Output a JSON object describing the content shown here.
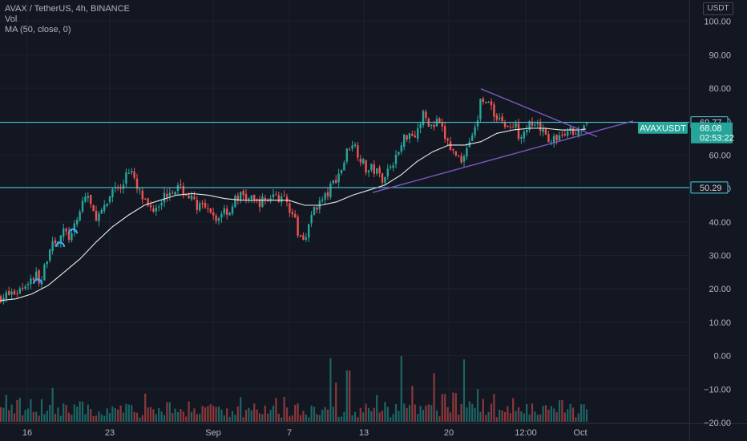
{
  "legend": {
    "title": "AVAX / TetherUS, 4h, BINANCE",
    "vol": "Vol",
    "ma": "MA (50, close, 0)"
  },
  "currency": "USDT",
  "colors": {
    "background": "#131722",
    "up": "#26a69a",
    "down": "#ef5350",
    "ma": "#e8e8e8",
    "trendline": "#7e57c2",
    "level": "#4dd0e1"
  },
  "chart_data": {
    "type": "candlestick",
    "symbol": "AVAXUSDT",
    "timeframe": "4h",
    "exchange": "BINANCE",
    "price_axis": {
      "ticks": [
        100,
        90,
        80,
        70,
        60,
        50,
        40,
        30,
        20,
        10,
        0,
        -10,
        -20
      ],
      "tick_labels": [
        "100.00",
        "90.00",
        "80.00",
        "70.00",
        "60.00",
        "50.00",
        "40.00",
        "30.00",
        "20.00",
        "10.00",
        "0.00",
        "−10.00",
        "−20.00"
      ]
    },
    "time_axis": {
      "labels": [
        "16",
        "23",
        "Sep",
        "7",
        "13",
        "20",
        "12:00",
        "Oct"
      ]
    },
    "price_anchors": [
      [
        0,
        17.5
      ],
      [
        8,
        18
      ],
      [
        20,
        19
      ],
      [
        30,
        21
      ],
      [
        38,
        23
      ],
      [
        45,
        24
      ],
      [
        52,
        22
      ],
      [
        58,
        29
      ],
      [
        64,
        34
      ],
      [
        72,
        35
      ],
      [
        80,
        37
      ],
      [
        88,
        35
      ],
      [
        96,
        40
      ],
      [
        104,
        47
      ],
      [
        110,
        48
      ],
      [
        116,
        42
      ],
      [
        124,
        42
      ],
      [
        132,
        44
      ],
      [
        140,
        50
      ],
      [
        146,
        51
      ],
      [
        152,
        49
      ],
      [
        158,
        56
      ],
      [
        164,
        55
      ],
      [
        170,
        50
      ],
      [
        176,
        48
      ],
      [
        182,
        45
      ],
      [
        190,
        44
      ],
      [
        198,
        46
      ],
      [
        206,
        48
      ],
      [
        214,
        50
      ],
      [
        222,
        50
      ],
      [
        230,
        49
      ],
      [
        238,
        47
      ],
      [
        246,
        45
      ],
      [
        254,
        44
      ],
      [
        262,
        42
      ],
      [
        270,
        40
      ],
      [
        278,
        44
      ],
      [
        286,
        43
      ],
      [
        294,
        47
      ],
      [
        302,
        48
      ],
      [
        310,
        47
      ],
      [
        318,
        46
      ],
      [
        326,
        46
      ],
      [
        334,
        47
      ],
      [
        342,
        48
      ],
      [
        350,
        47
      ],
      [
        358,
        46
      ],
      [
        366,
        42
      ],
      [
        372,
        36
      ],
      [
        378,
        35
      ],
      [
        384,
        38
      ],
      [
        392,
        44
      ],
      [
        400,
        46
      ],
      [
        408,
        48
      ],
      [
        416,
        52
      ],
      [
        422,
        54
      ],
      [
        428,
        57
      ],
      [
        434,
        62
      ],
      [
        440,
        64
      ],
      [
        446,
        61
      ],
      [
        452,
        58
      ],
      [
        458,
        55
      ],
      [
        464,
        56
      ],
      [
        470,
        55
      ],
      [
        476,
        53
      ],
      [
        482,
        55
      ],
      [
        490,
        58
      ],
      [
        498,
        61
      ],
      [
        504,
        65
      ],
      [
        510,
        67
      ],
      [
        516,
        66
      ],
      [
        522,
        68
      ],
      [
        528,
        72
      ],
      [
        534,
        70
      ],
      [
        540,
        68
      ],
      [
        546,
        70
      ],
      [
        552,
        67
      ],
      [
        558,
        64
      ],
      [
        564,
        61
      ],
      [
        570,
        60
      ],
      [
        576,
        59
      ],
      [
        582,
        62
      ],
      [
        588,
        66
      ],
      [
        594,
        68
      ],
      [
        600,
        77
      ],
      [
        606,
        77
      ],
      [
        612,
        74
      ],
      [
        618,
        72
      ],
      [
        624,
        71
      ],
      [
        630,
        69
      ],
      [
        636,
        68
      ],
      [
        642,
        69
      ],
      [
        648,
        66
      ],
      [
        654,
        68
      ],
      [
        660,
        69
      ],
      [
        666,
        68
      ],
      [
        672,
        68
      ],
      [
        678,
        67
      ],
      [
        684,
        65
      ],
      [
        690,
        64
      ],
      [
        696,
        66
      ],
      [
        702,
        65
      ],
      [
        708,
        67
      ],
      [
        714,
        67
      ],
      [
        720,
        68
      ],
      [
        726,
        67
      ],
      [
        731,
        68
      ]
    ],
    "moving_average": {
      "period": 50,
      "points": [
        [
          0,
          16.5
        ],
        [
          20,
          17
        ],
        [
          40,
          18.5
        ],
        [
          60,
          21
        ],
        [
          80,
          25
        ],
        [
          100,
          29
        ],
        [
          120,
          34
        ],
        [
          140,
          38.5
        ],
        [
          160,
          42
        ],
        [
          180,
          45
        ],
        [
          200,
          46.5
        ],
        [
          220,
          48
        ],
        [
          240,
          48.5
        ],
        [
          260,
          48
        ],
        [
          280,
          47
        ],
        [
          300,
          46.5
        ],
        [
          330,
          46.5
        ],
        [
          360,
          46.5
        ],
        [
          380,
          45
        ],
        [
          400,
          45
        ],
        [
          420,
          46
        ],
        [
          440,
          48
        ],
        [
          460,
          49.5
        ],
        [
          480,
          51
        ],
        [
          500,
          54
        ],
        [
          520,
          58
        ],
        [
          540,
          61
        ],
        [
          560,
          63
        ],
        [
          580,
          63
        ],
        [
          600,
          64
        ],
        [
          620,
          66.5
        ],
        [
          640,
          67.5
        ],
        [
          660,
          68
        ],
        [
          680,
          68
        ],
        [
          700,
          67.5
        ],
        [
          720,
          67.5
        ],
        [
          731,
          67.8
        ]
      ]
    },
    "volume": {
      "max_value": 100,
      "spikes": [
        [
          38,
          22
        ],
        [
          52,
          22
        ],
        [
          100,
          20
        ],
        [
          210,
          19
        ],
        [
          300,
          24
        ],
        [
          412,
          62
        ],
        [
          420,
          38
        ],
        [
          434,
          50
        ],
        [
          470,
          26
        ],
        [
          500,
          64
        ],
        [
          514,
          35
        ],
        [
          542,
          45
        ],
        [
          553,
          27
        ],
        [
          568,
          28
        ],
        [
          580,
          46
        ],
        [
          596,
          32
        ],
        [
          616,
          27
        ],
        [
          640,
          23
        ],
        [
          700,
          21
        ],
        [
          727,
          17
        ]
      ]
    },
    "price_levels": [
      {
        "label": "69.77",
        "value": 69.77
      },
      {
        "label": "50.29",
        "value": 50.29
      }
    ],
    "current_price": {
      "symbol": "AVAXUSDT",
      "price_label": "68.08",
      "countdown": "02:53:22",
      "value": 68.08
    },
    "trendlines": [
      {
        "name": "upper",
        "points": [
          [
            600,
            79.8
          ],
          [
            745,
            65.5
          ]
        ]
      },
      {
        "name": "lower",
        "points": [
          [
            465,
            48.8
          ],
          [
            790,
            70.2
          ]
        ]
      }
    ],
    "pattern_arcs": [
      [
        42,
        52,
        22
      ],
      [
        70,
        80,
        33
      ],
      [
        86,
        96,
        37
      ]
    ]
  }
}
